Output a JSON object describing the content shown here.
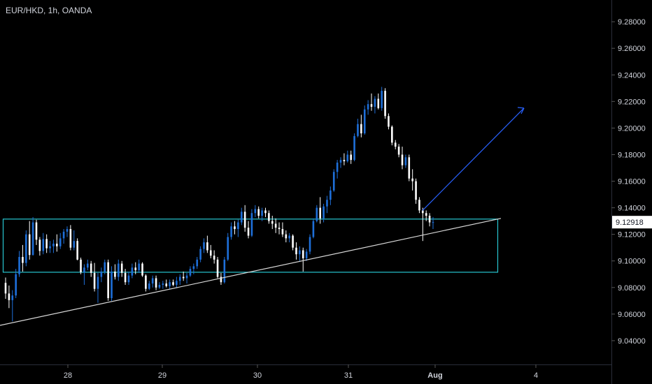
{
  "colors": {
    "background": "#000000",
    "up_candle": "#1e6fd9",
    "down_candle": "#ffffff",
    "box": "#27c6d0",
    "trendline": "#d8d8d8",
    "arrow": "#2962ff",
    "text": "#d1d4dc",
    "price_label_bg": "#ffffff"
  },
  "chart_data": {
    "type": "candlestick",
    "title": "EUR/HKD, 1h, OANDA",
    "ylim": [
      9.02,
      9.29
    ],
    "xlim": [
      0,
      155
    ],
    "y_ticks": [
      "9.28000",
      "9.26000",
      "9.24000",
      "9.22000",
      "9.20000",
      "9.18000",
      "9.16000",
      "9.14000",
      "9.12000",
      "9.10000",
      "9.08000",
      "9.06000",
      "9.04000"
    ],
    "x_ticks": [
      {
        "label": "28",
        "x": 22
      },
      {
        "label": "29",
        "x": 54
      },
      {
        "label": "30",
        "x": 86
      },
      {
        "label": "31",
        "x": 118
      },
      {
        "label": "Aug",
        "x": 146
      },
      {
        "label": "4",
        "x": 181
      }
    ],
    "last_price": "9.12918",
    "last_price_value": 9.12918,
    "candles": [
      [
        9.0835,
        9.0875,
        9.0715,
        9.0755
      ],
      [
        9.0755,
        9.0815,
        9.0645,
        9.0705
      ],
      [
        9.0705,
        9.078,
        9.0545,
        9.074
      ],
      [
        9.074,
        9.094,
        9.072,
        9.09
      ],
      [
        9.09,
        9.1075,
        9.088,
        9.103
      ],
      [
        9.103,
        9.112,
        9.092,
        9.0985
      ],
      [
        9.0985,
        9.123,
        9.096,
        9.12
      ],
      [
        9.12,
        9.13,
        9.101,
        9.1045
      ],
      [
        9.1045,
        9.133,
        9.104,
        9.129
      ],
      [
        9.129,
        9.131,
        9.112,
        9.116
      ],
      [
        9.116,
        9.118,
        9.104,
        9.1075
      ],
      [
        9.1075,
        9.121,
        9.105,
        9.1165
      ],
      [
        9.1165,
        9.12,
        9.106,
        9.1095
      ],
      [
        9.1095,
        9.115,
        9.106,
        9.111
      ],
      [
        9.111,
        9.116,
        9.106,
        9.113
      ],
      [
        9.113,
        9.12,
        9.107,
        9.111
      ],
      [
        9.111,
        9.121,
        9.109,
        9.117
      ],
      [
        9.117,
        9.124,
        9.113,
        9.122
      ],
      [
        9.122,
        9.126,
        9.118,
        9.124
      ],
      [
        9.124,
        9.127,
        9.108,
        9.11
      ],
      [
        9.11,
        9.123,
        9.108,
        9.115
      ],
      [
        9.115,
        9.117,
        9.1005,
        9.101
      ],
      [
        9.101,
        9.1025,
        9.09,
        9.0915
      ],
      [
        9.0915,
        9.0975,
        9.082,
        9.095
      ],
      [
        9.095,
        9.101,
        9.093,
        9.098
      ],
      [
        9.098,
        9.1,
        9.088,
        9.091
      ],
      [
        9.091,
        9.0985,
        9.077,
        9.079
      ],
      [
        9.079,
        9.091,
        9.0685,
        9.088
      ],
      [
        9.088,
        9.095,
        9.084,
        9.092
      ],
      [
        9.092,
        9.101,
        9.09,
        9.099
      ],
      [
        9.099,
        9.101,
        9.07,
        9.072
      ],
      [
        9.072,
        9.096,
        9.07,
        9.092
      ],
      [
        9.092,
        9.0975,
        9.086,
        9.088
      ],
      [
        9.088,
        9.101,
        9.085,
        9.098
      ],
      [
        9.098,
        9.1,
        9.088,
        9.091
      ],
      [
        9.091,
        9.094,
        9.082,
        9.084
      ],
      [
        9.084,
        9.092,
        9.082,
        9.089
      ],
      [
        9.089,
        9.098,
        9.087,
        9.095
      ],
      [
        9.095,
        9.099,
        9.09,
        9.093
      ],
      [
        9.093,
        9.101,
        9.091,
        9.098
      ],
      [
        9.098,
        9.099,
        9.088,
        9.089
      ],
      [
        9.089,
        9.09,
        9.077,
        9.079
      ],
      [
        9.079,
        9.085,
        9.078,
        9.083
      ],
      [
        9.083,
        9.089,
        9.08,
        9.087
      ],
      [
        9.087,
        9.089,
        9.078,
        9.08
      ],
      [
        9.08,
        9.084,
        9.079,
        9.082
      ],
      [
        9.082,
        9.085,
        9.079,
        9.083
      ],
      [
        9.083,
        9.086,
        9.08,
        9.081
      ],
      [
        9.081,
        9.086,
        9.079,
        9.084
      ],
      [
        9.084,
        9.086,
        9.081,
        9.082
      ],
      [
        9.082,
        9.088,
        9.08,
        9.085
      ],
      [
        9.085,
        9.09,
        9.082,
        9.088
      ],
      [
        9.088,
        9.092,
        9.085,
        9.087
      ],
      [
        9.087,
        9.091,
        9.083,
        9.089
      ],
      [
        9.089,
        9.096,
        9.088,
        9.094
      ],
      [
        9.094,
        9.098,
        9.09,
        9.096
      ],
      [
        9.096,
        9.103,
        9.094,
        9.101
      ],
      [
        9.101,
        9.111,
        9.099,
        9.109
      ],
      [
        9.109,
        9.117,
        9.106,
        9.114
      ],
      [
        9.114,
        9.119,
        9.106,
        9.108
      ],
      [
        9.108,
        9.112,
        9.102,
        9.104
      ],
      [
        9.104,
        9.108,
        9.098,
        9.101
      ],
      [
        9.101,
        9.103,
        9.087,
        9.088
      ],
      [
        9.088,
        9.091,
        9.082,
        9.084
      ],
      [
        9.084,
        9.103,
        9.083,
        9.101
      ],
      [
        9.101,
        9.121,
        9.1,
        9.118
      ],
      [
        9.118,
        9.129,
        9.116,
        9.126
      ],
      [
        9.126,
        9.13,
        9.12,
        9.124
      ],
      [
        9.124,
        9.131,
        9.118,
        9.129
      ],
      [
        9.129,
        9.14,
        9.127,
        9.137
      ],
      [
        9.137,
        9.142,
        9.122,
        9.125
      ],
      [
        9.125,
        9.13,
        9.117,
        9.119
      ],
      [
        9.119,
        9.139,
        9.118,
        9.136
      ],
      [
        9.136,
        9.142,
        9.133,
        9.139
      ],
      [
        9.139,
        9.141,
        9.132,
        9.134
      ],
      [
        9.134,
        9.14,
        9.13,
        9.138
      ],
      [
        9.138,
        9.14,
        9.133,
        9.136
      ],
      [
        9.136,
        9.138,
        9.128,
        9.13
      ],
      [
        9.13,
        9.134,
        9.124,
        9.128
      ],
      [
        9.128,
        9.132,
        9.121,
        9.125
      ],
      [
        9.125,
        9.129,
        9.12,
        9.124
      ],
      [
        9.124,
        9.129,
        9.118,
        9.12
      ],
      [
        9.12,
        9.123,
        9.114,
        9.117
      ],
      [
        9.117,
        9.121,
        9.114,
        9.119
      ],
      [
        9.119,
        9.12,
        9.108,
        9.11
      ],
      [
        9.11,
        9.114,
        9.101,
        9.105
      ],
      [
        9.105,
        9.111,
        9.1,
        9.108
      ],
      [
        9.108,
        9.11,
        9.092,
        9.102
      ],
      [
        9.102,
        9.109,
        9.1,
        9.107
      ],
      [
        9.107,
        9.12,
        9.105,
        9.118
      ],
      [
        9.118,
        9.132,
        9.117,
        9.13
      ],
      [
        9.13,
        9.142,
        9.129,
        9.14
      ],
      [
        9.14,
        9.148,
        9.128,
        9.132
      ],
      [
        9.132,
        9.143,
        9.129,
        9.141
      ],
      [
        9.141,
        9.149,
        9.136,
        9.146
      ],
      [
        9.146,
        9.156,
        9.142,
        9.153
      ],
      [
        9.153,
        9.169,
        9.152,
        9.167
      ],
      [
        9.167,
        9.176,
        9.162,
        9.174
      ],
      [
        9.174,
        9.178,
        9.17,
        9.176
      ],
      [
        9.176,
        9.181,
        9.172,
        9.175
      ],
      [
        9.175,
        9.183,
        9.174,
        9.18
      ],
      [
        9.18,
        9.183,
        9.173,
        9.176
      ],
      [
        9.176,
        9.196,
        9.175,
        9.194
      ],
      [
        9.194,
        9.207,
        9.193,
        9.203
      ],
      [
        9.203,
        9.21,
        9.193,
        9.196
      ],
      [
        9.196,
        9.217,
        9.195,
        9.214
      ],
      [
        9.214,
        9.221,
        9.21,
        9.218
      ],
      [
        9.218,
        9.226,
        9.213,
        9.216
      ],
      [
        9.216,
        9.224,
        9.211,
        9.222
      ],
      [
        9.222,
        9.226,
        9.214,
        9.215
      ],
      [
        9.215,
        9.231,
        9.213,
        9.228
      ],
      [
        9.228,
        9.23,
        9.207,
        9.209
      ],
      [
        9.209,
        9.211,
        9.199,
        9.201
      ],
      [
        9.201,
        9.202,
        9.187,
        9.189
      ],
      [
        9.189,
        9.191,
        9.184,
        9.186
      ],
      [
        9.186,
        9.188,
        9.178,
        9.18
      ],
      [
        9.18,
        9.186,
        9.169,
        9.172
      ],
      [
        9.172,
        9.18,
        9.17,
        9.178
      ],
      [
        9.178,
        9.18,
        9.16,
        9.162
      ],
      [
        9.162,
        9.169,
        9.153,
        9.16
      ],
      [
        9.16,
        9.162,
        9.143,
        9.146
      ],
      [
        9.146,
        9.148,
        9.136,
        9.138
      ],
      [
        9.138,
        9.14,
        9.115,
        9.136
      ],
      [
        9.136,
        9.138,
        9.13,
        9.134
      ],
      [
        9.134,
        9.136,
        9.126,
        9.129
      ],
      [
        9.129,
        9.133,
        9.124,
        9.1292
      ]
    ]
  }
}
